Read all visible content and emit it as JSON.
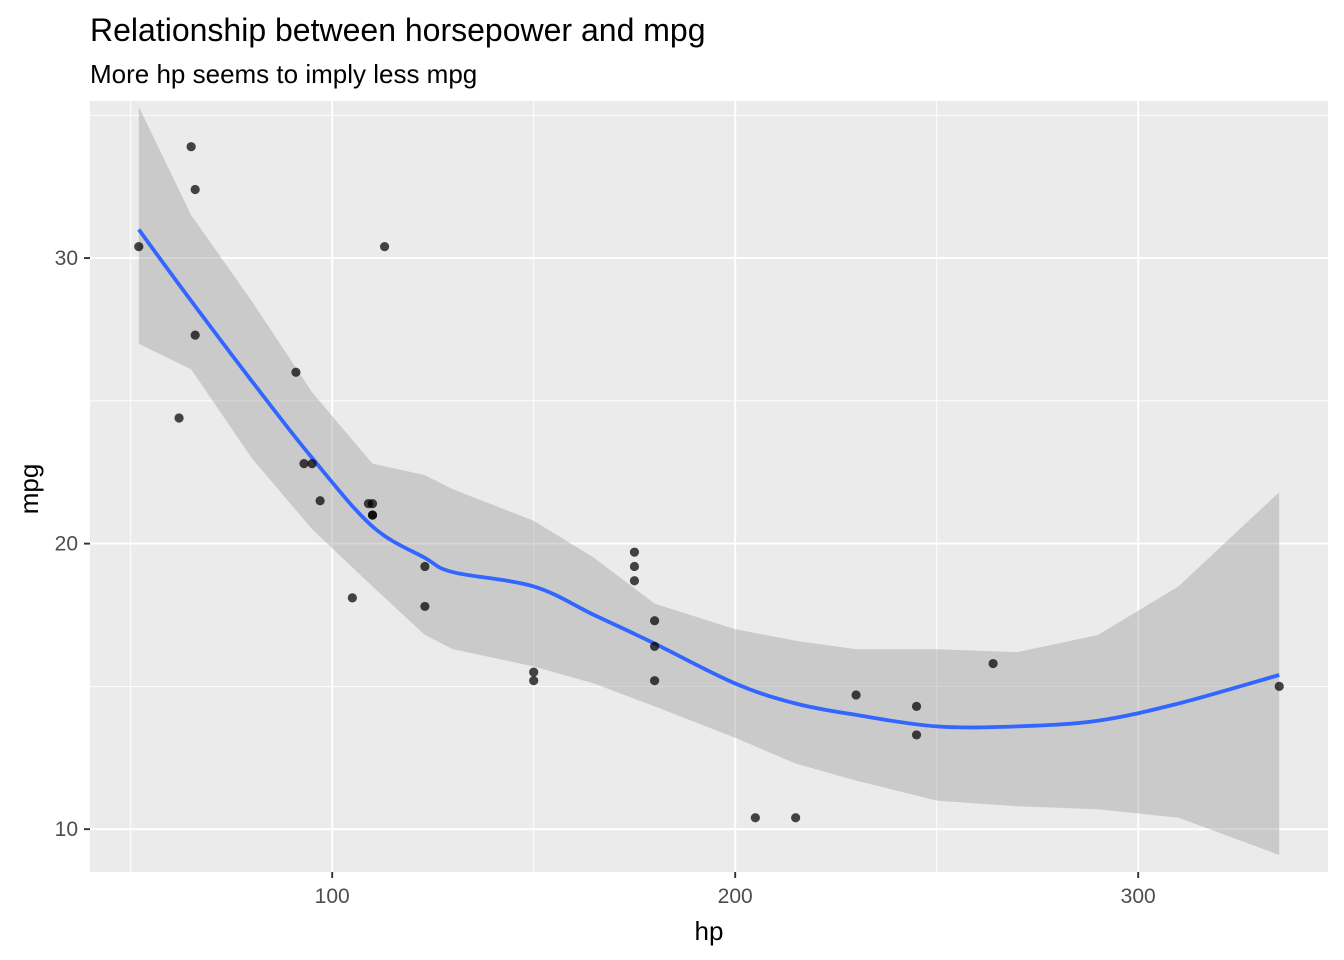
{
  "chart_data": {
    "type": "scatter",
    "title": "Relationship between horsepower and mpg",
    "subtitle": "More hp seems to imply less mpg",
    "xlabel": "hp",
    "ylabel": "mpg",
    "xlim": [
      39.9,
      347.1
    ],
    "ylim": [
      8.5,
      35.5
    ],
    "x_ticks": [
      100,
      200,
      300
    ],
    "y_ticks": [
      10,
      20,
      30
    ],
    "x_tick_labels": [
      "100",
      "200",
      "300"
    ],
    "y_tick_labels": [
      "10",
      "20",
      "30"
    ],
    "x_minor_ticks": [
      50,
      150,
      250
    ],
    "y_minor_ticks": [
      15,
      25,
      35
    ],
    "grid": true,
    "colors": {
      "panel_background": "#EBEBEB",
      "grid": "#FFFFFF",
      "points": "#000000",
      "smooth_line": "#3366FF",
      "confidence_band": "#999999"
    },
    "points": {
      "x": [
        110,
        110,
        93,
        110,
        175,
        105,
        245,
        62,
        95,
        123,
        123,
        180,
        180,
        180,
        205,
        215,
        230,
        66,
        52,
        65,
        97,
        150,
        150,
        245,
        175,
        66,
        91,
        113,
        264,
        175,
        335,
        109
      ],
      "y": [
        21.0,
        21.0,
        22.8,
        21.4,
        18.7,
        18.1,
        14.3,
        24.4,
        22.8,
        19.2,
        17.8,
        16.4,
        17.3,
        15.2,
        10.4,
        10.4,
        14.7,
        32.4,
        30.4,
        33.9,
        21.5,
        15.5,
        15.2,
        13.3,
        19.2,
        27.3,
        26.0,
        30.4,
        15.8,
        19.7,
        15.0,
        21.4
      ]
    },
    "smooth": {
      "x": [
        52,
        65,
        80,
        95,
        110,
        123,
        130,
        150,
        165,
        180,
        200,
        215,
        230,
        250,
        270,
        290,
        310,
        335
      ],
      "y": [
        31.0,
        28.5,
        25.7,
        23.0,
        20.6,
        19.5,
        19.0,
        18.5,
        17.5,
        16.5,
        15.1,
        14.4,
        14.0,
        13.6,
        13.6,
        13.8,
        14.4,
        15.4
      ],
      "upper": [
        35.3,
        31.5,
        28.5,
        25.3,
        22.8,
        22.4,
        21.9,
        20.8,
        19.5,
        17.9,
        17.0,
        16.6,
        16.3,
        16.3,
        16.2,
        16.8,
        18.5,
        21.8
      ],
      "lower": [
        27.0,
        26.1,
        23.0,
        20.5,
        18.5,
        16.8,
        16.3,
        15.7,
        15.1,
        14.3,
        13.2,
        12.3,
        11.7,
        11.0,
        10.8,
        10.7,
        10.4,
        9.1
      ]
    }
  }
}
